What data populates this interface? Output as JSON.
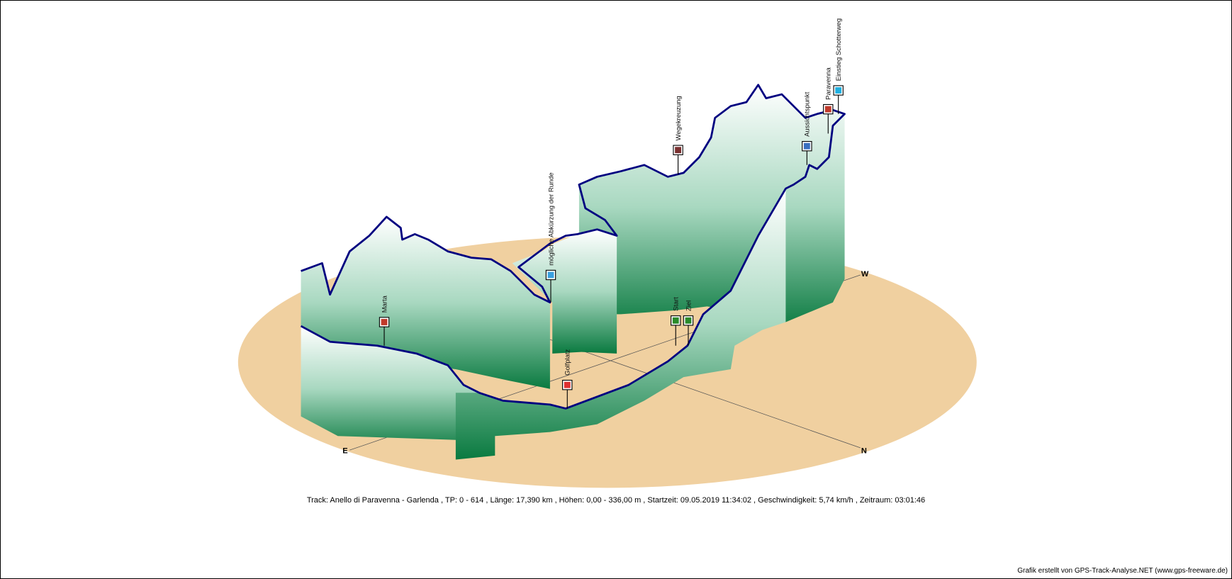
{
  "compass": {
    "east": "E",
    "west": "W",
    "north": "N"
  },
  "waypoints": [
    {
      "label": "Marta",
      "icon": "house-icon",
      "color": "#c0392b"
    },
    {
      "label": "mögliche Abkürzung der Runde",
      "icon": "info-sign-icon",
      "color": "#3aa0e0"
    },
    {
      "label": "Golfplatz",
      "icon": "golf-icon",
      "color": "#e03030"
    },
    {
      "label": "Start",
      "icon": "flag-icon",
      "color": "#2a8a2a"
    },
    {
      "label": "Ziel",
      "icon": "flag-icon",
      "color": "#2a8a2a"
    },
    {
      "label": "Wegekreuzung",
      "icon": "signpost-icon",
      "color": "#7a3030"
    },
    {
      "label": "Aussichtspunkt",
      "icon": "camera-icon",
      "color": "#3a70c0"
    },
    {
      "label": "Paravenna",
      "icon": "house-icon",
      "color": "#c0392b"
    },
    {
      "label": "Einstieg Schotterweg",
      "icon": "info-icon",
      "color": "#20b0e0"
    }
  ],
  "colors": {
    "ground": "#f0d0a0",
    "track": "#000080",
    "wall_top": "#ffffff",
    "wall_bottom": "#0a7a40"
  },
  "footer": {
    "summary": "Track: Anello di Paravenna - Garlenda  ,  TP: 0 - 614  ,  Länge: 17,390 km  ,  Höhen: 0,00 - 336,00 m  ,  Startzeit: 09.05.2019 11:34:02  ,  Geschwindigkeit: 5,74 km/h  ,  Zeitraum: 03:01:46",
    "credit": "Grafik erstellt von GPS-Track-Analyse.NET (www.gps-freeware.de)"
  }
}
